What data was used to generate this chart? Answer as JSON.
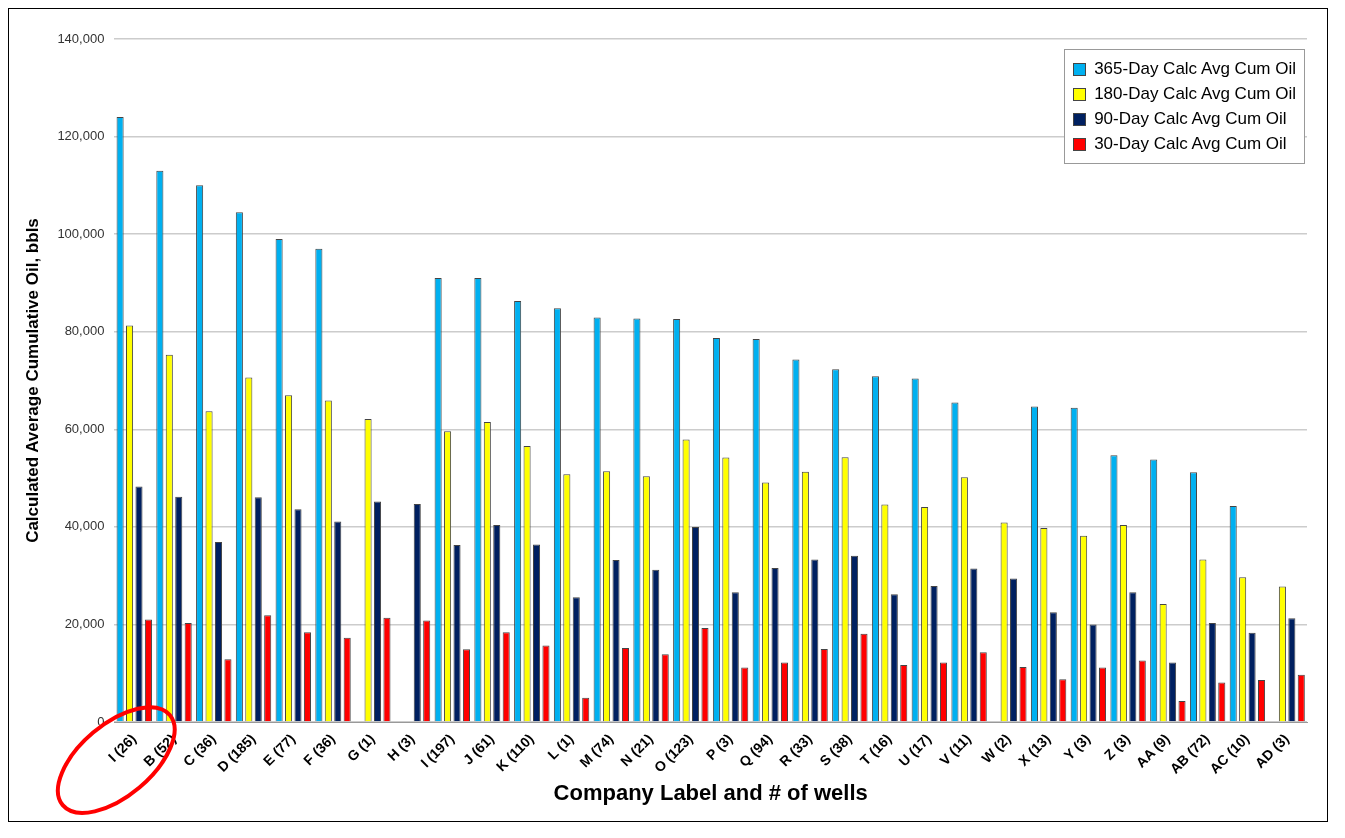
{
  "chart_data": {
    "type": "bar",
    "xlabel": "Company Label and # of wells",
    "ylabel": "Calculated Average Cumulative Oil, bbls",
    "categories": [
      "I (26)",
      "B (52)",
      "C (36)",
      "D (185)",
      "E (77)",
      "F (36)",
      "G (1)",
      "H (3)",
      "I (197)",
      "J (61)",
      "K (110)",
      "L (1)",
      "M (74)",
      "N (21)",
      "O (123)",
      "P (3)",
      "Q (94)",
      "R (33)",
      "S (38)",
      "T (16)",
      "U (17)",
      "V (11)",
      "W (2)",
      "X (13)",
      "Y (3)",
      "Z (3)",
      "AA (9)",
      "AB (72)",
      "AC (10)",
      "AD (3)"
    ],
    "series": [
      {
        "name": "365-Day Calc Avg Cum Oil",
        "color": "#00b0f0",
        "values": [
          124000,
          113000,
          110000,
          104500,
          99000,
          97000,
          null,
          null,
          91000,
          91000,
          86300,
          84800,
          82900,
          82700,
          82600,
          78700,
          78500,
          74300,
          72300,
          70900,
          70400,
          65500,
          null,
          64700,
          64400,
          54700,
          53800,
          51200,
          44300,
          null
        ]
      },
      {
        "name": "180-Day Calc Avg Cum Oil",
        "color": "#ffff00",
        "values": [
          81300,
          75300,
          63700,
          70600,
          67000,
          65900,
          62100,
          null,
          59600,
          61500,
          56600,
          50800,
          51400,
          50400,
          57900,
          54200,
          49100,
          51300,
          54300,
          44600,
          44100,
          50200,
          40900,
          39800,
          38200,
          40400,
          24200,
          33300,
          29700,
          27800
        ]
      },
      {
        "name": "90-Day Calc Avg Cum Oil",
        "color": "#002060",
        "values": [
          48300,
          46200,
          36900,
          46100,
          43600,
          41100,
          45200,
          44700,
          36300,
          40400,
          36400,
          25600,
          33200,
          31200,
          40000,
          26600,
          31600,
          33300,
          34100,
          26200,
          27900,
          31500,
          29400,
          22500,
          20000,
          26600,
          12200,
          20300,
          18300,
          21300
        ]
      },
      {
        "name": "30-Day Calc Avg Cum Oil",
        "color": "#ff0000",
        "values": [
          21000,
          20300,
          12900,
          21900,
          18400,
          17300,
          21400,
          20800,
          14900,
          18400,
          15700,
          5000,
          15200,
          13900,
          19300,
          11200,
          12200,
          15000,
          18100,
          11700,
          12200,
          14300,
          11300,
          8800,
          11200,
          12600,
          4300,
          8100,
          8600,
          9700
        ]
      }
    ],
    "ylim": [
      0,
      140000
    ],
    "yticks": [
      0,
      {
        "value": 20000,
        "label": "20,000"
      },
      {
        "value": 40000,
        "label": "40,000"
      },
      {
        "value": 60000,
        "label": "60,000"
      },
      {
        "value": 80000,
        "label": "80,000"
      },
      {
        "value": 100000,
        "label": "100,000"
      },
      {
        "value": 120000,
        "label": "120,000"
      },
      {
        "value": 140000,
        "label": "140,000"
      }
    ],
    "grid": "y",
    "legend": "top right"
  }
}
